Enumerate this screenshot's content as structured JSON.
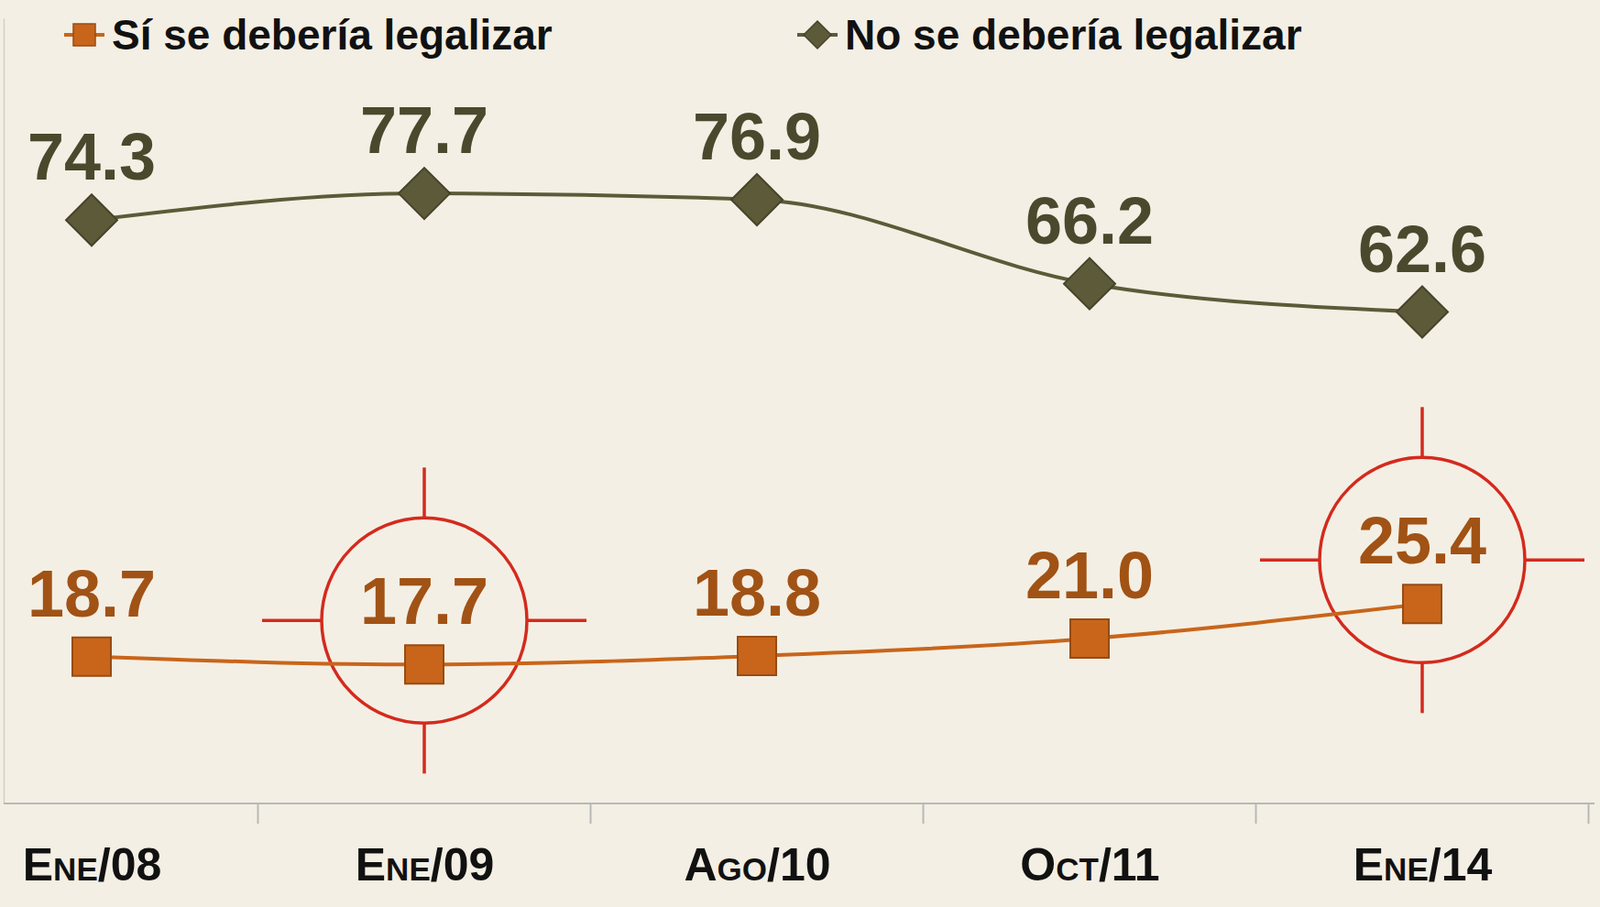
{
  "chart_data": {
    "type": "line",
    "categories": [
      "Ene/08",
      "Ene/09",
      "Ago/10",
      "Oct/11",
      "Ene/14"
    ],
    "series": [
      {
        "name": "Sí se debería legalizar",
        "color": "#c8651a",
        "marker": "square",
        "line_style": "solid",
        "values": [
          18.7,
          17.7,
          18.8,
          21.0,
          25.4
        ],
        "value_labels": [
          "18.7",
          "17.7",
          "18.8",
          "21.0",
          "25.4"
        ]
      },
      {
        "name": "No se debería legalizar",
        "color": "#5c5a38",
        "marker": "diamond",
        "line_style": "solid",
        "values": [
          74.3,
          77.7,
          76.9,
          66.2,
          62.6
        ],
        "value_labels": [
          "74.3",
          "77.7",
          "76.9",
          "66.2",
          "62.6"
        ]
      }
    ],
    "ylim": [
      0,
      100
    ],
    "yticks": [],
    "tick_labels": "x",
    "data_labels": true,
    "legend": "top"
  }
}
